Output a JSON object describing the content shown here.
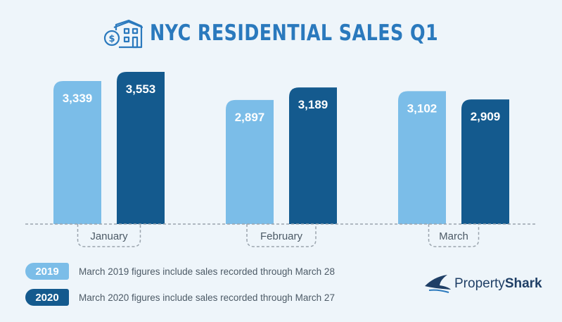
{
  "title": "NYC RESIDENTIAL SALES Q1",
  "colors": {
    "y2019": "#7bbde8",
    "y2020": "#145a8e",
    "title": "#2a79bd",
    "text": "#4c5a66"
  },
  "icons": {
    "title": "house-dollar-icon",
    "logo": "shark-logo-icon"
  },
  "chart_data": {
    "type": "bar",
    "title": "NYC RESIDENTIAL SALES Q1",
    "categories": [
      "January",
      "February",
      "March"
    ],
    "series": [
      {
        "name": "2019",
        "values": [
          3339,
          2897,
          3102
        ],
        "labels": [
          "3,339",
          "2,897",
          "3,102"
        ]
      },
      {
        "name": "2020",
        "values": [
          3553,
          3189,
          2909
        ],
        "labels": [
          "3,553",
          "3,189",
          "2,909"
        ]
      }
    ],
    "grid": false,
    "legend": "bottom-left"
  },
  "legend": [
    {
      "label": "2019",
      "note": "March 2019 figures include sales recorded through March 28"
    },
    {
      "label": "2020",
      "note": "March 2020 figures include sales recorded through March 27"
    }
  ],
  "logo": {
    "brand_light": "Property",
    "brand_bold": "Shark"
  }
}
